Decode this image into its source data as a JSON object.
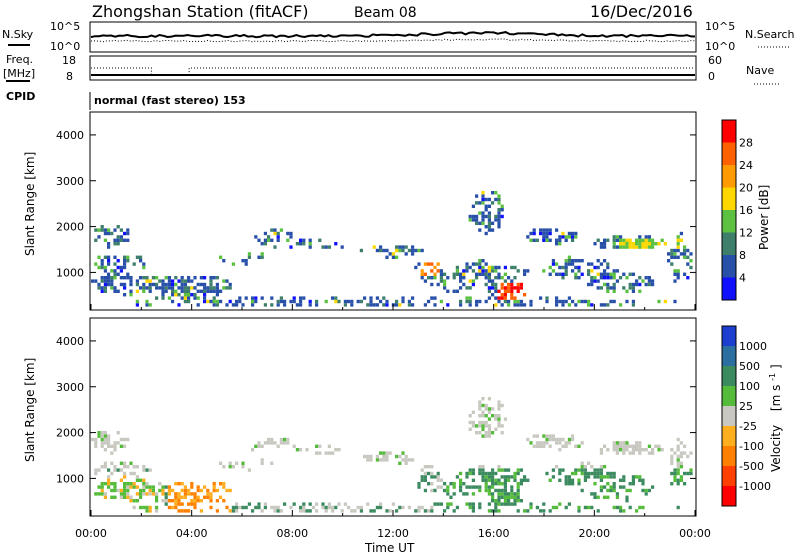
{
  "header": {
    "station": "Zhongshan Station (fitACF)",
    "beam": "Beam 08",
    "date": "16/Dec/2016"
  },
  "panels": {
    "nsky_label": "N.Sky",
    "nsearch_label": "N.Search",
    "freq_label": "Freq.",
    "freq_unit": "[MHz]",
    "nave_label": "Nave",
    "cpid_label": "CPID",
    "cpid_value": "normal (fast stereo) 153",
    "noise_ticks": [
      "10^5",
      "10^0"
    ],
    "freq_ticks": [
      "18",
      "8"
    ],
    "nave_ticks": [
      "60",
      "0"
    ]
  },
  "chart_data": [
    {
      "type": "heatmap",
      "name": "power",
      "ylabel": "Slant Range [km]",
      "xlabel": "Time UT",
      "ylim": [
        180,
        4500
      ],
      "yticks": [
        "1000",
        "2000",
        "3000",
        "4000"
      ],
      "xticks": [
        "00:00",
        "04:00",
        "08:00",
        "12:00",
        "16:00",
        "20:00",
        "00:00"
      ],
      "colorbar": {
        "label": "Power [dB]",
        "ticks": [
          "4",
          "8",
          "12",
          "16",
          "20",
          "24",
          "28"
        ],
        "colors": [
          "#1010ff",
          "#2850a8",
          "#3d7f6b",
          "#5cc040",
          "#ffd700",
          "#ff9a00",
          "#ff6000",
          "#ff0000"
        ]
      }
    },
    {
      "type": "heatmap",
      "name": "velocity",
      "ylabel": "Slant Range [km]",
      "xlabel": "Time UT",
      "ylim": [
        180,
        4500
      ],
      "yticks": [
        "1000",
        "2000",
        "3000",
        "4000"
      ],
      "xticks": [
        "00:00",
        "04:00",
        "08:00",
        "12:00",
        "16:00",
        "20:00",
        "00:00"
      ],
      "colorbar": {
        "label": "Velocity",
        "unit_label": "[m s",
        "unit_exponent": "-1",
        "unit_close": "]",
        "ticks": [
          "1000",
          "500",
          "100",
          "25",
          "-25",
          "-100",
          "-500",
          "-1000"
        ],
        "colors": [
          "#1c3fd0",
          "#2a6fa0",
          "#3c8a60",
          "#55bb3a",
          "#c8c8c0",
          "#ffae20",
          "#ff8000",
          "#ff4000",
          "#ff0000"
        ]
      }
    }
  ]
}
